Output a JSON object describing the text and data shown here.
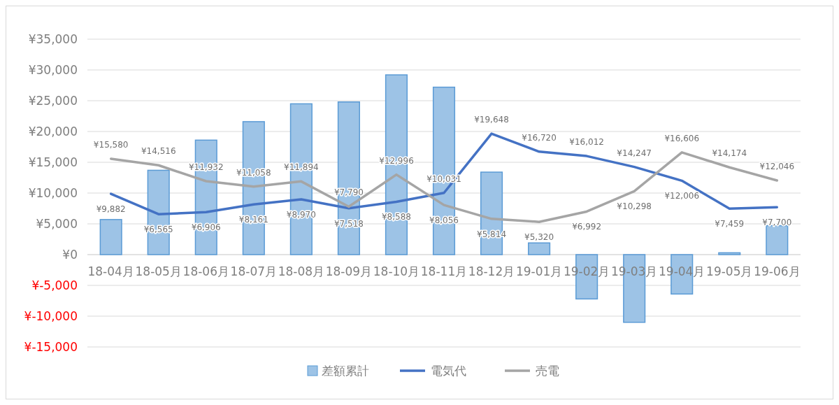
{
  "chart_data": {
    "type": "bar",
    "categories": [
      "18-04月",
      "18-05月",
      "18-06月",
      "18-07月",
      "18-08月",
      "18-09月",
      "18-10月",
      "18-11月",
      "18-12月",
      "19-01月",
      "19-02月",
      "19-03月",
      "19-04月",
      "19-05月",
      "19-06月"
    ],
    "series": [
      {
        "name": "差額累計",
        "color": "#9dc3e6",
        "values": [
          5700,
          13700,
          18600,
          21600,
          24500,
          24800,
          29200,
          27200,
          13400,
          1900,
          -7200,
          -11000,
          -6400,
          300,
          4700
        ]
      },
      {
        "name": "電気代",
        "type": "line",
        "color": "#4472c4",
        "values": [
          9882,
          6565,
          6906,
          8161,
          8970,
          7518,
          8588,
          10031,
          19648,
          16720,
          16012,
          14247,
          12006,
          7459,
          7700
        ],
        "value_labels": [
          "¥9,882",
          "¥6,565",
          "¥6,906",
          "¥8,161",
          "¥8,970",
          "¥7,518",
          "¥8,588",
          "¥10,031",
          "¥19,648",
          "¥16,720",
          "¥16,012",
          "¥14,247",
          "¥12,006",
          "¥7,459",
          "¥7,700"
        ]
      },
      {
        "name": "売電",
        "type": "line",
        "color": "#a5a5a5",
        "values": [
          15580,
          14516,
          11932,
          11058,
          11894,
          7790,
          12996,
          8056,
          5814,
          5320,
          6992,
          10298,
          16606,
          14174,
          12046
        ],
        "value_labels": [
          "¥15,580",
          "¥14,516",
          "¥11,932",
          "¥11,058",
          "¥11,894",
          "¥7,790",
          "¥12,996",
          "¥8,056",
          "¥5,814",
          "¥5,320",
          "¥6,992",
          "¥10,298",
          "¥16,606",
          "¥14,174",
          "¥12,046"
        ]
      }
    ],
    "ylim": [
      -15000,
      35000
    ],
    "yticks": [
      {
        "value": -15000,
        "label": "¥-15,000"
      },
      {
        "value": -10000,
        "label": "¥-10,000"
      },
      {
        "value": -5000,
        "label": "¥-5,000"
      },
      {
        "value": 0,
        "label": "¥0"
      },
      {
        "value": 5000,
        "label": "¥5,000"
      },
      {
        "value": 10000,
        "label": "¥10,000"
      },
      {
        "value": 15000,
        "label": "¥15,000"
      },
      {
        "value": 20000,
        "label": "¥20,000"
      },
      {
        "value": 25000,
        "label": "¥25,000"
      },
      {
        "value": 30000,
        "label": "¥30,000"
      },
      {
        "value": 35000,
        "label": "¥35,000"
      }
    ],
    "grid": "y",
    "legend": "bottom",
    "marker": "none",
    "line_style": "solid"
  }
}
